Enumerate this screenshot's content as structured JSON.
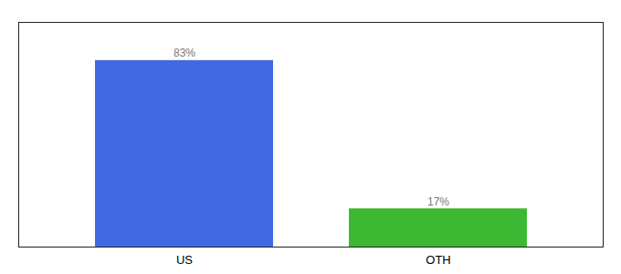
{
  "chart_data": {
    "type": "bar",
    "categories": [
      "US",
      "OTH"
    ],
    "values": [
      83,
      17
    ],
    "value_labels": [
      "83%",
      "17%"
    ],
    "colors": [
      "#4169e1",
      "#3cb832"
    ],
    "ylim": [
      0,
      100
    ],
    "data_labels": true,
    "tick_labels": "x"
  }
}
